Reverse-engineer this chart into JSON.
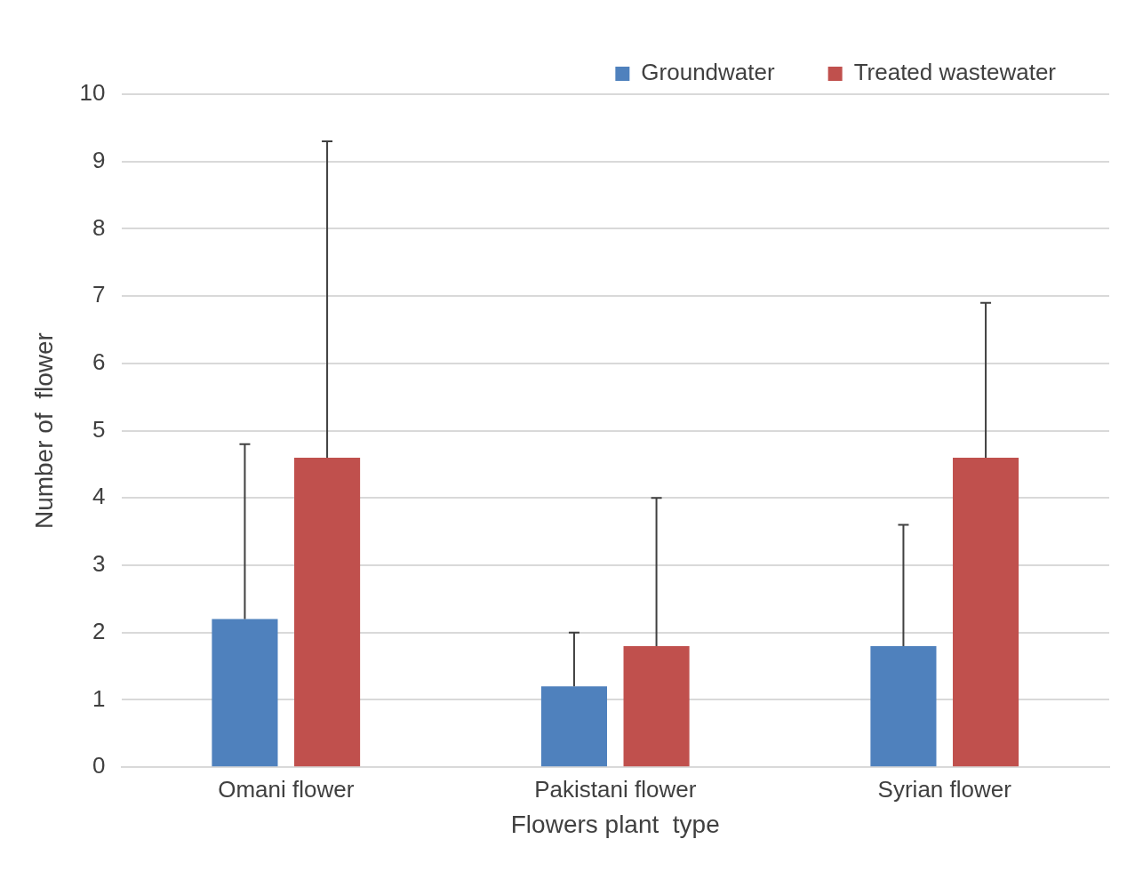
{
  "chart_data": {
    "type": "bar",
    "xlabel": "Flowers plant  type",
    "ylabel": "Number of  flower",
    "categories": [
      "Omani flower",
      "Pakistani flower",
      "Syrian flower"
    ],
    "series": [
      {
        "name": "Groundwater",
        "color": "#4f81bd",
        "values": [
          2.2,
          1.2,
          1.8
        ],
        "errors": [
          [
            2.2,
            4.8
          ],
          [
            1.2,
            2.0
          ],
          [
            1.8,
            3.6
          ]
        ]
      },
      {
        "name": "Treated wastewater",
        "color": "#c0504d",
        "values": [
          4.6,
          1.8,
          4.6
        ],
        "errors": [
          [
            4.6,
            9.3
          ],
          [
            1.8,
            4.0
          ],
          [
            4.6,
            6.9
          ]
        ]
      }
    ],
    "ylim": [
      0,
      10
    ],
    "yticks": [
      0,
      1,
      2,
      3,
      4,
      5,
      6,
      7,
      8,
      9,
      10
    ],
    "grid": "y",
    "legend": "top right"
  }
}
